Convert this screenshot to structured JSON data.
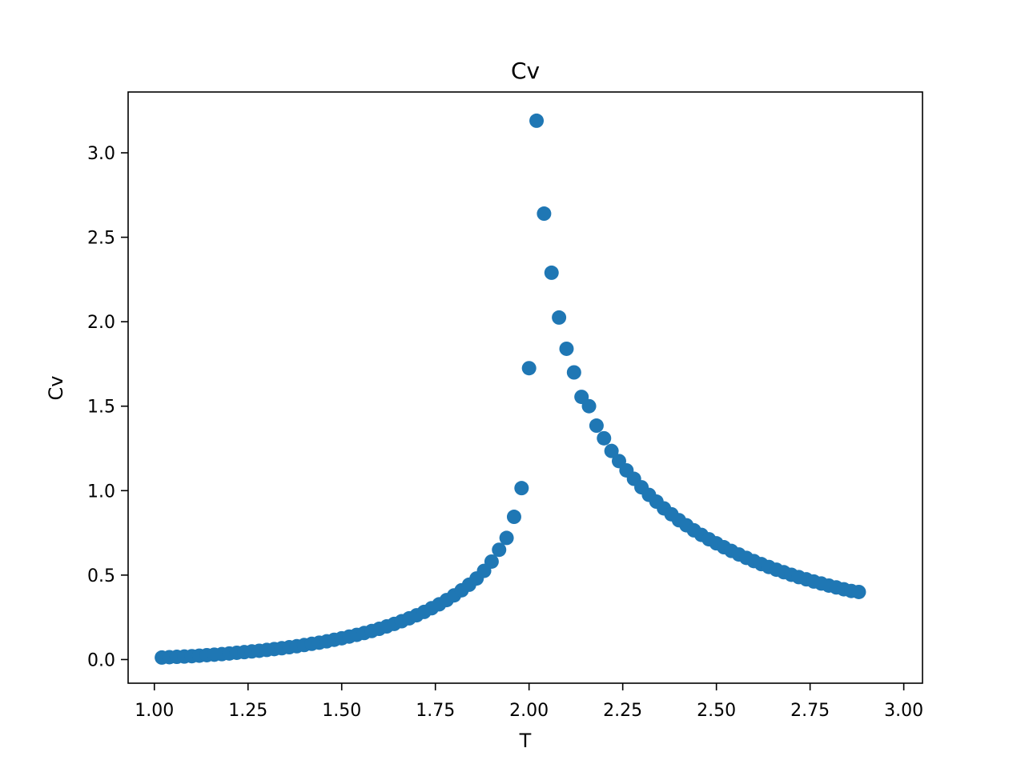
{
  "chart_data": {
    "type": "scatter",
    "title": "Cv",
    "xlabel": "T",
    "ylabel": "Cv",
    "xlim": [
      0.93,
      3.05
    ],
    "ylim": [
      -0.14,
      3.36
    ],
    "x_ticks": [
      "1.00",
      "1.25",
      "1.50",
      "1.75",
      "2.00",
      "2.25",
      "2.50",
      "2.75",
      "3.00"
    ],
    "y_ticks": [
      "0.0",
      "0.5",
      "1.0",
      "1.5",
      "2.0",
      "2.5",
      "3.0"
    ],
    "grid": false,
    "marker_color": "#1f77b4",
    "series": [
      {
        "points": [
          [
            1.02,
            0.012
          ],
          [
            1.04,
            0.014
          ],
          [
            1.06,
            0.016
          ],
          [
            1.08,
            0.018
          ],
          [
            1.1,
            0.02
          ],
          [
            1.12,
            0.023
          ],
          [
            1.14,
            0.026
          ],
          [
            1.16,
            0.029
          ],
          [
            1.18,
            0.032
          ],
          [
            1.2,
            0.036
          ],
          [
            1.22,
            0.04
          ],
          [
            1.24,
            0.044
          ],
          [
            1.26,
            0.048
          ],
          [
            1.28,
            0.052
          ],
          [
            1.3,
            0.057
          ],
          [
            1.32,
            0.062
          ],
          [
            1.34,
            0.067
          ],
          [
            1.36,
            0.073
          ],
          [
            1.38,
            0.079
          ],
          [
            1.4,
            0.086
          ],
          [
            1.42,
            0.093
          ],
          [
            1.44,
            0.1
          ],
          [
            1.46,
            0.108
          ],
          [
            1.48,
            0.117
          ],
          [
            1.5,
            0.126
          ],
          [
            1.52,
            0.136
          ],
          [
            1.54,
            0.146
          ],
          [
            1.56,
            0.157
          ],
          [
            1.58,
            0.169
          ],
          [
            1.6,
            0.182
          ],
          [
            1.62,
            0.196
          ],
          [
            1.64,
            0.211
          ],
          [
            1.66,
            0.227
          ],
          [
            1.68,
            0.244
          ],
          [
            1.7,
            0.262
          ],
          [
            1.72,
            0.282
          ],
          [
            1.74,
            0.304
          ],
          [
            1.76,
            0.327
          ],
          [
            1.78,
            0.352
          ],
          [
            1.8,
            0.38
          ],
          [
            1.82,
            0.41
          ],
          [
            1.84,
            0.443
          ],
          [
            1.86,
            0.48
          ],
          [
            1.88,
            0.525
          ],
          [
            1.9,
            0.58
          ],
          [
            1.92,
            0.65
          ],
          [
            1.94,
            0.72
          ],
          [
            1.96,
            0.845
          ],
          [
            1.98,
            1.015
          ],
          [
            2.0,
            1.725
          ],
          [
            2.02,
            3.19
          ],
          [
            2.04,
            2.64
          ],
          [
            2.06,
            2.29
          ],
          [
            2.08,
            2.025
          ],
          [
            2.1,
            1.84
          ],
          [
            2.12,
            1.7
          ],
          [
            2.14,
            1.555
          ],
          [
            2.16,
            1.5
          ],
          [
            2.18,
            1.385
          ],
          [
            2.2,
            1.31
          ],
          [
            2.22,
            1.235
          ],
          [
            2.24,
            1.175
          ],
          [
            2.26,
            1.12
          ],
          [
            2.28,
            1.07
          ],
          [
            2.3,
            1.02
          ],
          [
            2.32,
            0.975
          ],
          [
            2.34,
            0.935
          ],
          [
            2.36,
            0.895
          ],
          [
            2.38,
            0.86
          ],
          [
            2.4,
            0.825
          ],
          [
            2.42,
            0.795
          ],
          [
            2.44,
            0.765
          ],
          [
            2.46,
            0.738
          ],
          [
            2.48,
            0.712
          ],
          [
            2.5,
            0.688
          ],
          [
            2.52,
            0.665
          ],
          [
            2.54,
            0.643
          ],
          [
            2.56,
            0.622
          ],
          [
            2.58,
            0.602
          ],
          [
            2.6,
            0.583
          ],
          [
            2.62,
            0.565
          ],
          [
            2.64,
            0.548
          ],
          [
            2.66,
            0.532
          ],
          [
            2.68,
            0.517
          ],
          [
            2.7,
            0.502
          ],
          [
            2.72,
            0.488
          ],
          [
            2.74,
            0.475
          ],
          [
            2.76,
            0.462
          ],
          [
            2.78,
            0.45
          ],
          [
            2.8,
            0.438
          ],
          [
            2.82,
            0.427
          ],
          [
            2.84,
            0.416
          ],
          [
            2.86,
            0.406
          ],
          [
            2.88,
            0.4
          ]
        ]
      }
    ]
  }
}
